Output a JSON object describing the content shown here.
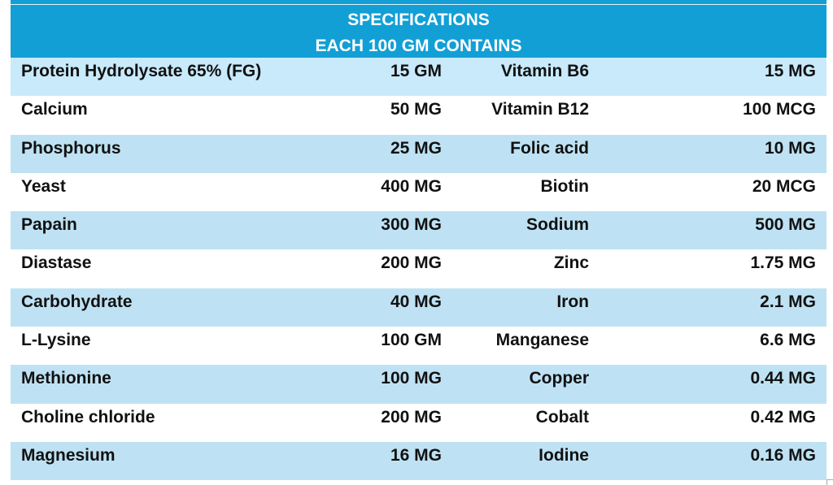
{
  "header": {
    "title": "SPECIFICATIONS",
    "subtitle": "EACH 100 GM CONTAINS"
  },
  "colors": {
    "header_bg": "#129fd6",
    "header_text": "#ffffff",
    "band_first": "#c8eafa",
    "band": "#bee2f3",
    "row_white": "#ffffff"
  },
  "rows": [
    {
      "name1": "Protein Hydrolysate 65% (FG)",
      "value1": "15 GM",
      "name2": "Vitamin B6",
      "value2": "15 MG"
    },
    {
      "name1": "Calcium",
      "value1": "50 MG",
      "name2": "Vitamin B12",
      "value2": "100 MCG"
    },
    {
      "name1": "Phosphorus",
      "value1": "25 MG",
      "name2": "Folic acid",
      "value2": "10 MG"
    },
    {
      "name1": "Yeast",
      "value1": "400 MG",
      "name2": "Biotin",
      "value2": "20 MCG"
    },
    {
      "name1": "Papain",
      "value1": "300 MG",
      "name2": "Sodium",
      "value2": "500 MG"
    },
    {
      "name1": "Diastase",
      "value1": "200 MG",
      "name2": "Zinc",
      "value2": "1.75 MG"
    },
    {
      "name1": "Carbohydrate",
      "value1": "40 MG",
      "name2": "Iron",
      "value2": "2.1 MG"
    },
    {
      "name1": "L-Lysine",
      "value1": "100 GM",
      "name2": "Manganese",
      "value2": "6.6 MG"
    },
    {
      "name1": "Methionine",
      "value1": "100 MG",
      "name2": "Copper",
      "value2": "0.44 MG"
    },
    {
      "name1": "Choline chloride",
      "value1": "200 MG",
      "name2": "Cobalt",
      "value2": "0.42 MG"
    },
    {
      "name1": "Magnesium",
      "value1": "16 MG",
      "name2": "Iodine",
      "value2": "0.16 MG"
    }
  ]
}
